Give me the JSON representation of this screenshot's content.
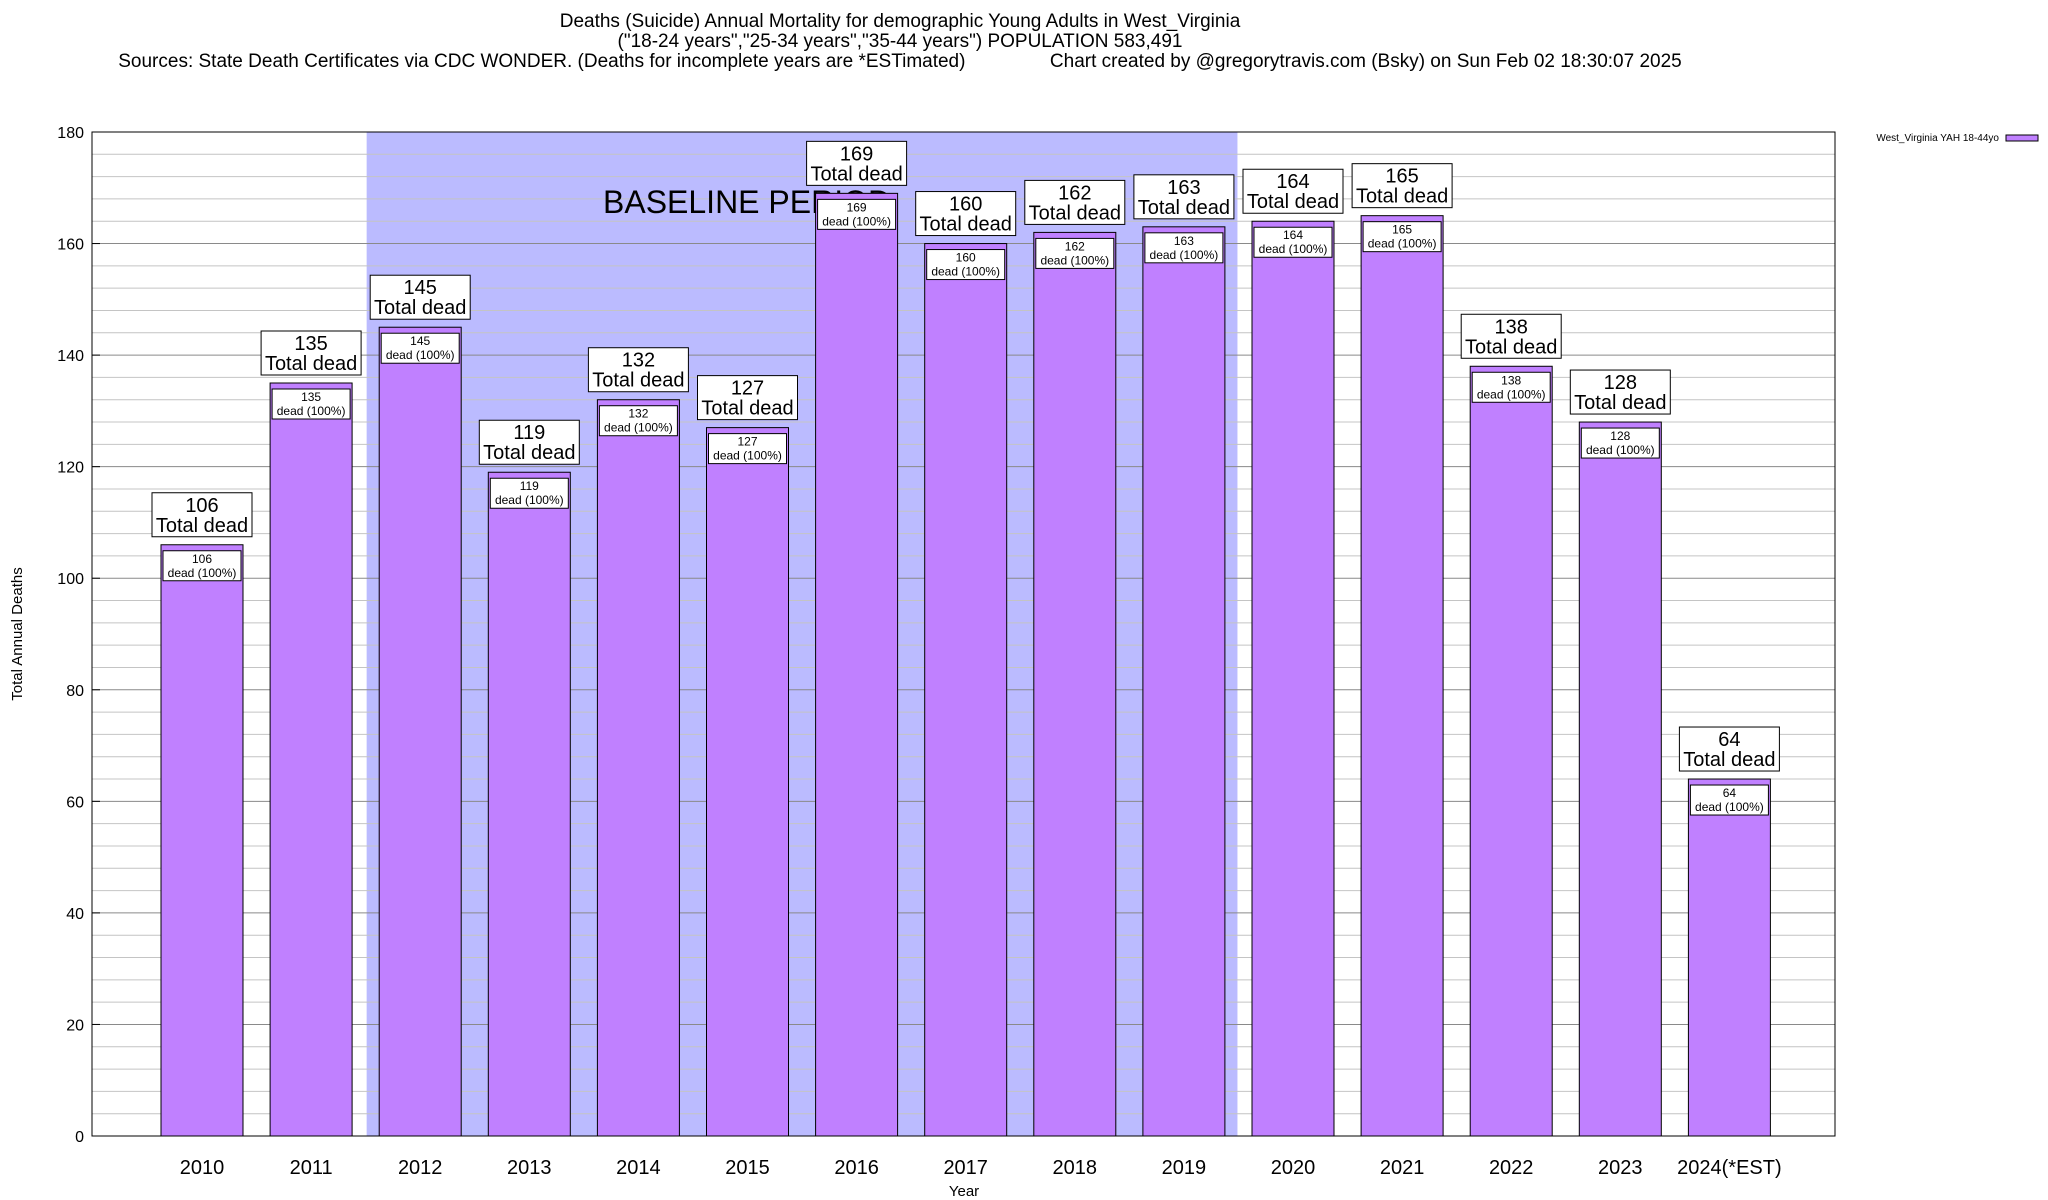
{
  "title_lines": [
    "Deaths (Suicide) Annual Mortality for demographic Young Adults in West_Virginia",
    "(\"18-24 years\",\"25-34 years\",\"35-44 years\") POPULATION 583,491",
    "Sources: State Death Certificates via CDC WONDER. (Deaths for incomplete years are *ESTimated)                Chart created by @gregorytravis.com (Bsky) on Sun Feb 02 18:30:07 2025"
  ],
  "chart_data": {
    "type": "bar",
    "title": "Deaths (Suicide) Annual Mortality for demographic Young Adults in West_Virginia",
    "xlabel": "Year",
    "ylabel": "Total Annual Deaths",
    "ylim": [
      0,
      180
    ],
    "yticks": [
      0,
      20,
      40,
      60,
      80,
      100,
      120,
      140,
      160,
      180
    ],
    "grid": true,
    "legend_position": "top-right",
    "categories": [
      "2010",
      "2011",
      "2012",
      "2013",
      "2014",
      "2015",
      "2016",
      "2017",
      "2018",
      "2019",
      "2020",
      "2021",
      "2022",
      "2023",
      "2024(*EST)"
    ],
    "series": [
      {
        "name": "West_Virginia YAH 18-44yo",
        "values": [
          106,
          135,
          145,
          119,
          132,
          127,
          169,
          160,
          162,
          163,
          164,
          165,
          138,
          128,
          64
        ]
      }
    ],
    "total_label": "Total dead",
    "inner_label": "dead (100%)",
    "baseline": {
      "label": "BASELINE PERIOD",
      "from": "2012",
      "to": "2019"
    },
    "colors": {
      "bar": "#c080ff",
      "baseline": "#bbbbff",
      "grid": "#a0a0a0"
    }
  }
}
